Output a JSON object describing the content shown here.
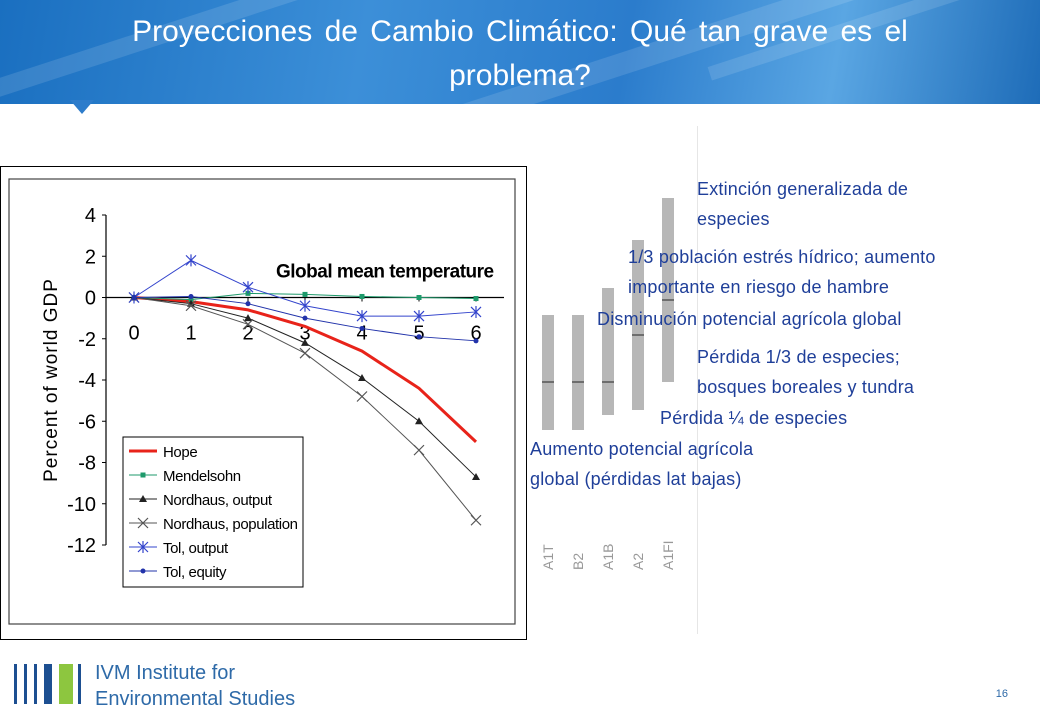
{
  "slide": {
    "title": "Proyecciones de Cambio Climático: Qué tan grave es el problema?",
    "page_number": "16"
  },
  "annotations": [
    "Extinción generalizada de",
    "especies",
    "1/3 población estrés hídrico; aumento",
    "importante en riesgo de hambre",
    "Disminución potencial agrícola global",
    "Pérdida 1/3 de especies;",
    "bosques boreales y tundra",
    "Pérdida ¼ de especies",
    "Aumento potencial agrícola",
    "global (pérdidas lat bajas)"
  ],
  "scenarios": {
    "labels": [
      "A1T",
      "B2",
      "A1B",
      "A2",
      "A1FI"
    ],
    "color": "#aaaaaa"
  },
  "footer": {
    "line1": "IVM Institute for",
    "line2": "Environmental Studies"
  },
  "colors": {
    "header": "#2b7ccc",
    "annotation": "#1f3f99",
    "footer_text": "#2e6aa8",
    "logo_green": "#8dc63f",
    "logo_blue": "#1d4f91"
  },
  "chart_data": {
    "type": "line",
    "title": "Global mean temperature",
    "ylabel": "Percent of world GDP",
    "xlabel": "",
    "x": [
      0,
      1,
      2,
      3,
      4,
      5,
      6
    ],
    "xticks": [
      "0",
      "1",
      "2",
      "3",
      "4",
      "5",
      "6"
    ],
    "yticks": [
      "4",
      "2",
      "0",
      "-2",
      "-4",
      "-6",
      "-8",
      "-10",
      "-12"
    ],
    "ylim": [
      -12,
      4
    ],
    "xlim": [
      0,
      6
    ],
    "legend_position": "bottom-left",
    "series": [
      {
        "name": "Hope",
        "color": "#e8231a",
        "marker": "none",
        "values": [
          0,
          -0.2,
          -0.6,
          -1.4,
          -2.6,
          -4.4,
          -7.0
        ]
      },
      {
        "name": "Mendelsohn",
        "color": "#1e9a6b",
        "marker": "square",
        "values": [
          0,
          -0.1,
          0.2,
          0.15,
          0.05,
          0.0,
          -0.05
        ]
      },
      {
        "name": "Nordhaus, output",
        "color": "#222222",
        "marker": "triangle",
        "values": [
          0,
          -0.3,
          -1.0,
          -2.2,
          -3.9,
          -6.0,
          -8.7
        ]
      },
      {
        "name": "Nordhaus, population",
        "color": "#555555",
        "marker": "x",
        "values": [
          0,
          -0.4,
          -1.3,
          -2.7,
          -4.8,
          -7.4,
          -10.8
        ]
      },
      {
        "name": "Tol, output",
        "color": "#3344cc",
        "marker": "asterisk",
        "values": [
          0,
          1.8,
          0.5,
          -0.4,
          -0.9,
          -0.9,
          -0.7
        ]
      },
      {
        "name": "Tol, equity",
        "color": "#2233aa",
        "marker": "dot",
        "values": [
          0,
          0.05,
          -0.3,
          -1.0,
          -1.5,
          -1.9,
          -2.1
        ]
      }
    ]
  }
}
